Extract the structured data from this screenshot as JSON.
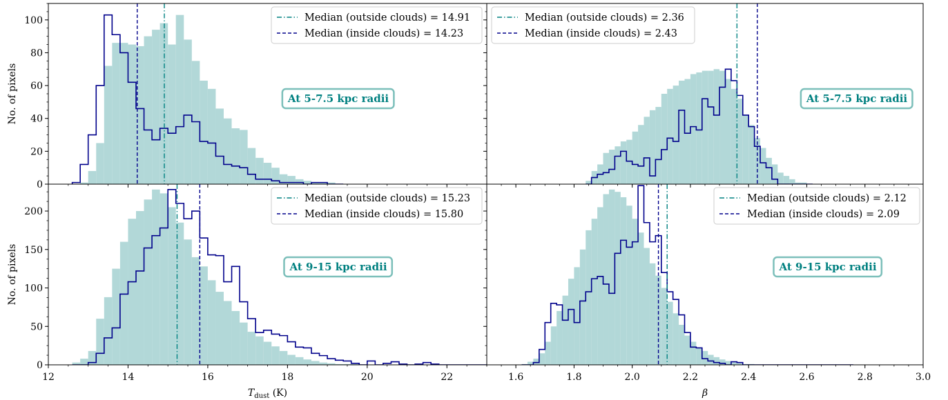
{
  "colors": {
    "outside_fill": "#b2d8d8",
    "outside_line": "#008080",
    "inside_line": "#00008b",
    "region_box_edge": "#7cbfba",
    "region_text": "#008080"
  },
  "chart_data": [
    {
      "type": "histogram",
      "panel": "top-left",
      "region_label": "At 5-7.5 kpc radii",
      "xlabel": "",
      "ylabel": "No. of pixels",
      "xlim": [
        12,
        23
      ],
      "ylim": [
        0,
        110
      ],
      "yticks": [
        0,
        20,
        40,
        60,
        80,
        100
      ],
      "xticks": [],
      "legend_position": "top-right",
      "medians": [
        {
          "label": "Median (outside clouds) = 14.91",
          "value": 14.91,
          "style": "dashdot"
        },
        {
          "label": "Median (inside clouds) = 14.23",
          "value": 14.23,
          "style": "dashed"
        }
      ],
      "outside": {
        "x0": 12.6,
        "width": 0.2,
        "counts": [
          0,
          1,
          8,
          25,
          72,
          86,
          86,
          85,
          84,
          90,
          94,
          98,
          85,
          103,
          88,
          75,
          63,
          58,
          46,
          40,
          34,
          33,
          22,
          16,
          13,
          10,
          6,
          5,
          3,
          2,
          1,
          1,
          1,
          0
        ]
      },
      "inside": {
        "x0": 12.6,
        "width": 0.2,
        "counts": [
          1,
          12,
          30,
          60,
          103,
          91,
          80,
          62,
          46,
          33,
          27,
          34,
          31,
          35,
          42,
          38,
          26,
          25,
          17,
          12,
          11,
          10,
          6,
          3,
          3,
          2,
          1,
          1,
          1,
          0,
          1,
          1,
          0,
          0
        ]
      }
    },
    {
      "type": "histogram",
      "panel": "top-right",
      "region_label": "At 5-7.5 kpc radii",
      "xlabel": "",
      "ylabel": "",
      "xlim": [
        1.5,
        3.0
      ],
      "ylim": [
        0,
        110
      ],
      "yticks": [
        0,
        20,
        40,
        60,
        80,
        100
      ],
      "xticks": [],
      "legend_position": "top-left",
      "medians": [
        {
          "label": "Median (outside clouds) = 2.36",
          "value": 2.36,
          "style": "dashdot"
        },
        {
          "label": "Median (inside clouds) = 2.43",
          "value": 2.43,
          "style": "dashed"
        }
      ],
      "outside": {
        "x0": 1.84,
        "width": 0.02,
        "counts": [
          2,
          8,
          12,
          19,
          21,
          23,
          26,
          27,
          32,
          36,
          41,
          45,
          47,
          55,
          58,
          60,
          63,
          64,
          67,
          68,
          69,
          69,
          70,
          69,
          64,
          58,
          52,
          42,
          36,
          28,
          22,
          16,
          12,
          7,
          5,
          3,
          1,
          1,
          0
        ]
      },
      "inside": {
        "x0": 1.84,
        "width": 0.02,
        "counts": [
          0,
          4,
          6,
          7,
          9,
          17,
          20,
          14,
          12,
          11,
          16,
          5,
          15,
          21,
          28,
          26,
          45,
          31,
          35,
          33,
          52,
          47,
          42,
          59,
          70,
          63,
          54,
          42,
          35,
          23,
          13,
          10,
          3,
          0,
          0,
          0,
          0,
          0,
          0
        ]
      }
    },
    {
      "type": "histogram",
      "panel": "bottom-left",
      "region_label": "At 9-15 kpc radii",
      "xlabel": "T_dust (K)",
      "xlabel_main": "T",
      "xlabel_sub": "dust",
      "xlabel_unit": "(K)",
      "ylabel": "No. of pixels",
      "xlim": [
        12,
        23
      ],
      "ylim": [
        0,
        235
      ],
      "yticks": [
        0,
        50,
        100,
        150,
        200
      ],
      "xticks": [
        12,
        14,
        16,
        18,
        20,
        22
      ],
      "legend_position": "top-right",
      "medians": [
        {
          "label": "Median (outside clouds) = 15.23",
          "value": 15.23,
          "style": "dashdot"
        },
        {
          "label": "Median (inside clouds) = 15.80",
          "value": 15.8,
          "style": "dashed"
        }
      ],
      "outside": {
        "x0": 12.6,
        "width": 0.2,
        "counts": [
          3,
          8,
          18,
          60,
          88,
          125,
          160,
          190,
          200,
          215,
          228,
          223,
          205,
          185,
          163,
          140,
          128,
          110,
          95,
          83,
          70,
          55,
          43,
          37,
          30,
          24,
          18,
          13,
          10,
          7,
          5,
          3,
          2,
          1,
          1,
          1,
          0,
          0,
          0,
          0,
          0,
          0,
          0,
          0,
          0,
          0,
          0,
          0,
          0,
          0,
          0,
          0
        ]
      },
      "inside": {
        "x0": 12.6,
        "width": 0.2,
        "counts": [
          0,
          0,
          3,
          15,
          35,
          48,
          92,
          108,
          122,
          152,
          168,
          178,
          228,
          210,
          190,
          200,
          165,
          143,
          142,
          108,
          128,
          82,
          60,
          42,
          45,
          40,
          38,
          30,
          23,
          22,
          15,
          12,
          8,
          6,
          5,
          2,
          0,
          5,
          0,
          2,
          4,
          1,
          0,
          1,
          3,
          1,
          0,
          0,
          0,
          0,
          0,
          0
        ]
      }
    },
    {
      "type": "histogram",
      "panel": "bottom-right",
      "region_label": "At 9-15 kpc radii",
      "xlabel": "β",
      "ylabel": "",
      "xlim": [
        1.5,
        3.0
      ],
      "ylim": [
        0,
        235
      ],
      "yticks": [
        0,
        50,
        100,
        150,
        200
      ],
      "xticks": [
        1.6,
        1.8,
        2.0,
        2.2,
        2.4,
        2.6,
        2.8,
        3.0
      ],
      "legend_position": "top-right",
      "medians": [
        {
          "label": "Median (outside clouds) = 2.12",
          "value": 2.12,
          "style": "dashdot"
        },
        {
          "label": "Median (inside clouds) = 2.09",
          "value": 2.09,
          "style": "dashed"
        }
      ],
      "outside": {
        "x0": 1.62,
        "width": 0.02,
        "counts": [
          1,
          4,
          8,
          15,
          30,
          50,
          70,
          90,
          112,
          127,
          150,
          175,
          190,
          205,
          222,
          228,
          225,
          218,
          207,
          190,
          172,
          152,
          132,
          116,
          100,
          82,
          67,
          52,
          38,
          30,
          22,
          18,
          13,
          10,
          7,
          5,
          3,
          2,
          1,
          1,
          0,
          0,
          0,
          0,
          0,
          0,
          0,
          0,
          0,
          0,
          0,
          0,
          0,
          0,
          0,
          0,
          0
        ]
      },
      "inside": {
        "x0": 1.62,
        "width": 0.02,
        "counts": [
          0,
          0,
          3,
          20,
          55,
          80,
          78,
          58,
          72,
          55,
          83,
          95,
          112,
          115,
          105,
          93,
          145,
          162,
          153,
          160,
          233,
          185,
          160,
          168,
          120,
          95,
          85,
          65,
          42,
          23,
          22,
          8,
          5,
          3,
          2,
          0,
          4,
          3,
          0,
          0,
          0,
          0,
          0,
          0,
          0,
          0,
          0,
          0,
          0,
          0,
          0,
          0,
          0,
          0,
          0,
          0,
          0
        ]
      }
    }
  ]
}
